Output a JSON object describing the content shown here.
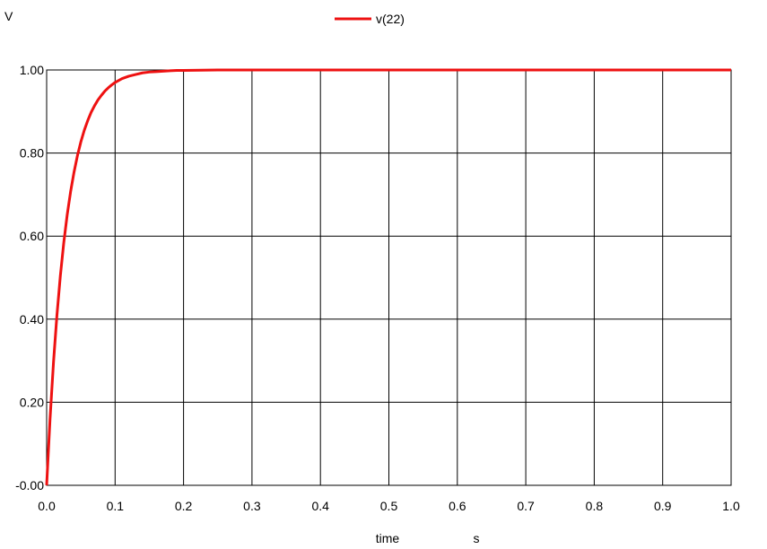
{
  "chart_data": {
    "type": "line",
    "ylabel": "V",
    "xlabel": "time",
    "xunit": "s",
    "legend_position": "top-center",
    "grid": true,
    "xlim": [
      0.0,
      1.0
    ],
    "ylim": [
      0.0,
      1.0
    ],
    "x_ticks": [
      "0.0",
      "0.1",
      "0.2",
      "0.3",
      "0.4",
      "0.5",
      "0.6",
      "0.7",
      "0.8",
      "0.9",
      "1.0"
    ],
    "y_ticks": [
      "-0.00",
      "0.20",
      "0.40",
      "0.60",
      "0.80",
      "1.00"
    ],
    "series": [
      {
        "name": "v(22)",
        "color": "#ee1111",
        "x": [
          0.0,
          0.005,
          0.01,
          0.015,
          0.02,
          0.025,
          0.03,
          0.035,
          0.04,
          0.045,
          0.05,
          0.055,
          0.06,
          0.065,
          0.07,
          0.075,
          0.08,
          0.085,
          0.09,
          0.095,
          0.1,
          0.11,
          0.12,
          0.13,
          0.14,
          0.15,
          0.16,
          0.17,
          0.18,
          0.19,
          0.2,
          0.25,
          0.3,
          0.4,
          0.5,
          0.6,
          0.7,
          0.8,
          0.9,
          1.0
        ],
        "values": [
          0.0,
          0.161,
          0.296,
          0.409,
          0.504,
          0.584,
          0.651,
          0.707,
          0.754,
          0.794,
          0.827,
          0.855,
          0.878,
          0.898,
          0.914,
          0.928,
          0.939,
          0.949,
          0.957,
          0.964,
          0.97,
          0.979,
          0.985,
          0.989,
          0.993,
          0.995,
          0.996,
          0.997,
          0.998,
          0.999,
          0.999,
          1.0,
          1.0,
          1.0,
          1.0,
          1.0,
          1.0,
          1.0,
          1.0,
          1.0
        ]
      }
    ]
  }
}
